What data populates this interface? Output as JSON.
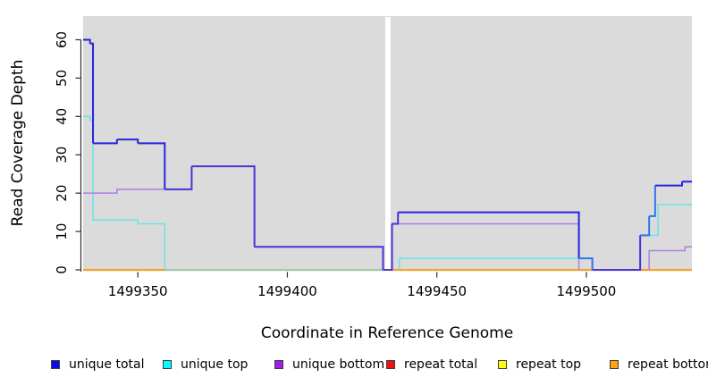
{
  "chart_data": {
    "type": "line",
    "style": "step-after-coverage-plot",
    "xlabel": "Coordinate in Reference Genome",
    "ylabel": "Read Coverage Depth",
    "x_ticks": [
      1499350,
      1499400,
      1499450,
      1499500
    ],
    "y_ticks": [
      0,
      10,
      20,
      30,
      40,
      50,
      60
    ],
    "xlim": [
      1499331.7,
      1499535.3
    ],
    "ylim": [
      -0.35,
      66.17
    ],
    "grid": false,
    "plot_background": "#dbdbdb",
    "gap": {
      "from": 1499432.75,
      "to": 1499434.5,
      "color": "#ffffff",
      "note": "white no-data band"
    },
    "palette": {
      "blue": "#2424e0",
      "indigo": "#4c33d6",
      "azure": "#2f74ec",
      "cyan": "#67e5e7",
      "purple": "#ad7fe0",
      "orange": "#ff9d15",
      "palegreen": "#98cba1",
      "red": "#e01717",
      "yellow": "#f0e441"
    },
    "series": [
      {
        "name": "unique total",
        "key": "blue",
        "z": 6,
        "multi": true,
        "steps": [
          [
            1499331.7,
            60,
            "blue"
          ],
          [
            1499334,
            59,
            "blue"
          ],
          [
            1499335,
            33,
            "blue"
          ],
          [
            1499343,
            34,
            "blue"
          ],
          [
            1499350,
            33,
            "blue"
          ],
          [
            1499359,
            21,
            "indigo"
          ],
          [
            1499368,
            27,
            "indigo"
          ],
          [
            1499389,
            6,
            "indigo"
          ],
          [
            1499432,
            0,
            "indigo"
          ],
          [
            1499435,
            12,
            "indigo"
          ],
          [
            1499437,
            15,
            "blue"
          ],
          [
            1499497.5,
            3,
            "azure"
          ],
          [
            1499502,
            0,
            "indigo"
          ],
          [
            1499518,
            9,
            "azure"
          ],
          [
            1499521,
            14,
            "azure"
          ],
          [
            1499523,
            22,
            "blue"
          ],
          [
            1499532,
            23,
            "blue"
          ],
          [
            1499535.3,
            23,
            "blue"
          ]
        ]
      },
      {
        "name": "unique top",
        "key": "cyan",
        "z": 3,
        "steps": [
          [
            1499331.7,
            40
          ],
          [
            1499334,
            39
          ],
          [
            1499335,
            13
          ],
          [
            1499350,
            12
          ],
          [
            1499359,
            0
          ],
          [
            1499437.5,
            3
          ],
          [
            1499502,
            0
          ],
          [
            1499518,
            9
          ],
          [
            1499524,
            17
          ],
          [
            1499535.3,
            17
          ]
        ]
      },
      {
        "name": "unique bottom",
        "key": "purple",
        "z": 4,
        "steps": [
          [
            1499331.7,
            20
          ],
          [
            1499343,
            21
          ],
          [
            1499359,
            21
          ],
          [
            1499368,
            27
          ],
          [
            1499389,
            6
          ],
          [
            1499432,
            0
          ],
          [
            1499435,
            12
          ],
          [
            1499497.5,
            0
          ],
          [
            1499521,
            5
          ],
          [
            1499533,
            6
          ],
          [
            1499535.3,
            6
          ]
        ]
      },
      {
        "name": "repeat total",
        "key": "red",
        "z": 1,
        "steps": [
          [
            1499331.7,
            0
          ],
          [
            1499535.3,
            0
          ]
        ]
      },
      {
        "name": "repeat top",
        "key": "yellow",
        "z": 2,
        "steps": [
          [
            1499331.7,
            0
          ],
          [
            1499535.3,
            0
          ]
        ]
      },
      {
        "name": "repeat bottom",
        "key": "orange",
        "z": 5,
        "value": 0,
        "segments": [
          {
            "from": 1499331.7,
            "to": 1499359,
            "color": "orange"
          },
          {
            "from": 1499359,
            "to": 1499432,
            "color": "palegreen"
          },
          {
            "from": 1499435,
            "to": 1499535.3,
            "color": "orange"
          }
        ]
      }
    ]
  },
  "legend": {
    "items": [
      {
        "label": "unique total",
        "color": "#0b0bf0"
      },
      {
        "label": "unique top",
        "color": "#00ffff"
      },
      {
        "label": "unique bottom",
        "color": "#a11ee8"
      },
      {
        "label": "repeat total",
        "color": "#ed1111"
      },
      {
        "label": "repeat top",
        "color": "#fdfd0c"
      },
      {
        "label": "repeat bottom",
        "color": "#ffa413"
      }
    ]
  }
}
